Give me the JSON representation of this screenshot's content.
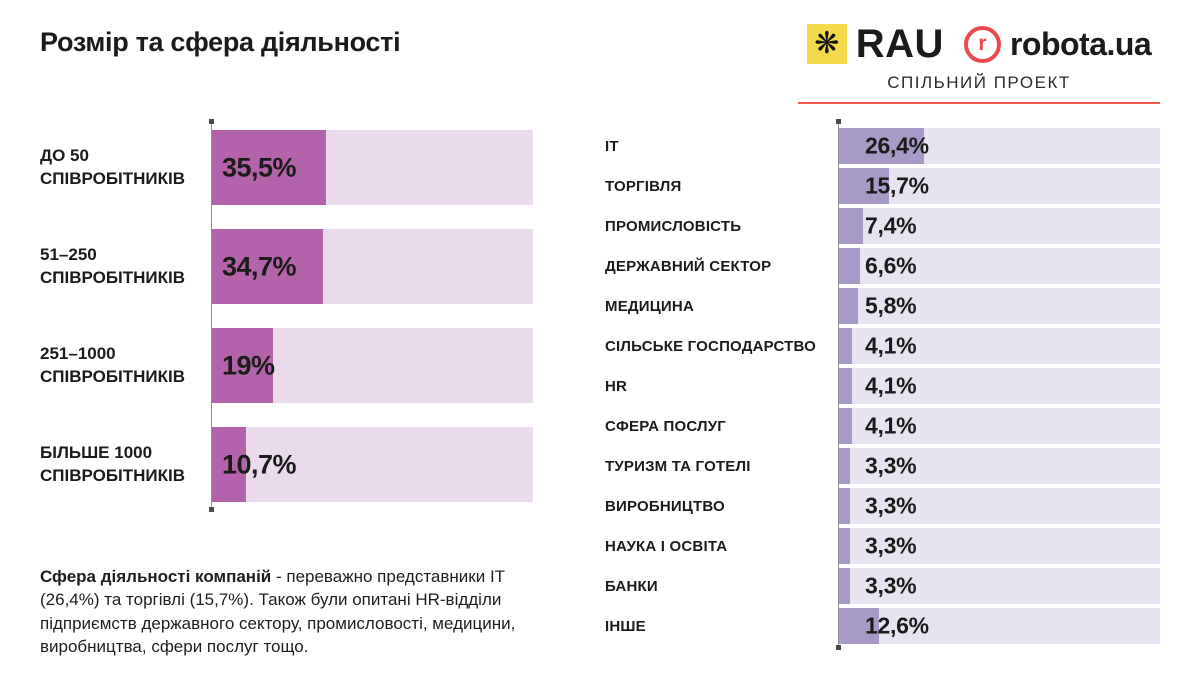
{
  "header": {
    "title": "Розмір та сфера діяльності",
    "partners": {
      "rau_label": "RAU",
      "rau_icon": "eight-petal-flower",
      "robota_icon_letter": "r",
      "robota_label": "robota.ua",
      "subtitle": "СПІЛЬНИЙ ПРОЕКТ"
    }
  },
  "colors": {
    "left_bar_fill": "#b263a9",
    "left_bar_track": "#e9dbeb",
    "right_bar_fill": "#a79ac8",
    "right_bar_track": "#e7e3f0",
    "underline_red": "#f15b4a",
    "robota_red": "#ee4950",
    "rau_yellow": "#f5d94b",
    "text": "#1b1b1b"
  },
  "chart_data": [
    {
      "type": "bar",
      "orientation": "horizontal",
      "title": "",
      "categories": [
        "ДО 50\nСПІВРОБІТНИКІВ",
        "51–250\nСПІВРОБІТНИКІВ",
        "251–1000\nСПІВРОБІТНИКІВ",
        "БІЛЬШЕ 1000\nСПІВРОБІТНИКІВ"
      ],
      "values": [
        35.5,
        34.7,
        19,
        10.7
      ],
      "value_labels": [
        "35,5%",
        "34,7%",
        "19%",
        "10,7%"
      ],
      "unit": "%",
      "xlim": [
        0,
        100
      ],
      "grid": false,
      "legend": false
    },
    {
      "type": "bar",
      "orientation": "horizontal",
      "title": "",
      "categories": [
        "IT",
        "ТОРГІВЛЯ",
        "ПРОМИСЛОВІСТЬ",
        "ДЕРЖАВНИЙ СЕКТОР",
        "МЕДИЦИНА",
        "СІЛЬСЬКЕ ГОСПОДАРСТВО",
        "HR",
        "СФЕРА ПОСЛУГ",
        "ТУРИЗМ ТА ГОТЕЛІ",
        "ВИРОБНИЦТВО",
        "НАУКА І ОСВІТА",
        "БАНКИ",
        "ІНШЕ"
      ],
      "values": [
        26.4,
        15.7,
        7.4,
        6.6,
        5.8,
        4.1,
        4.1,
        4.1,
        3.3,
        3.3,
        3.3,
        3.3,
        12.6
      ],
      "value_labels": [
        "26,4%",
        "15,7%",
        "7,4%",
        "6,6%",
        "5,8%",
        "4,1%",
        "4,1%",
        "4,1%",
        "3,3%",
        "3,3%",
        "3,3%",
        "3,3%",
        "12,6%"
      ],
      "unit": "%",
      "xlim": [
        0,
        100
      ],
      "grid": false,
      "legend": false
    }
  ],
  "footnote": {
    "lead": "Сфера діяльності компаній",
    "rest": " - переважно представники ІТ (26,4%) та торгівлі (15,7%). Також були опитані HR-відділи підприємств державного сектору, промисловості, медицини, виробництва, сфери послуг тощо."
  }
}
